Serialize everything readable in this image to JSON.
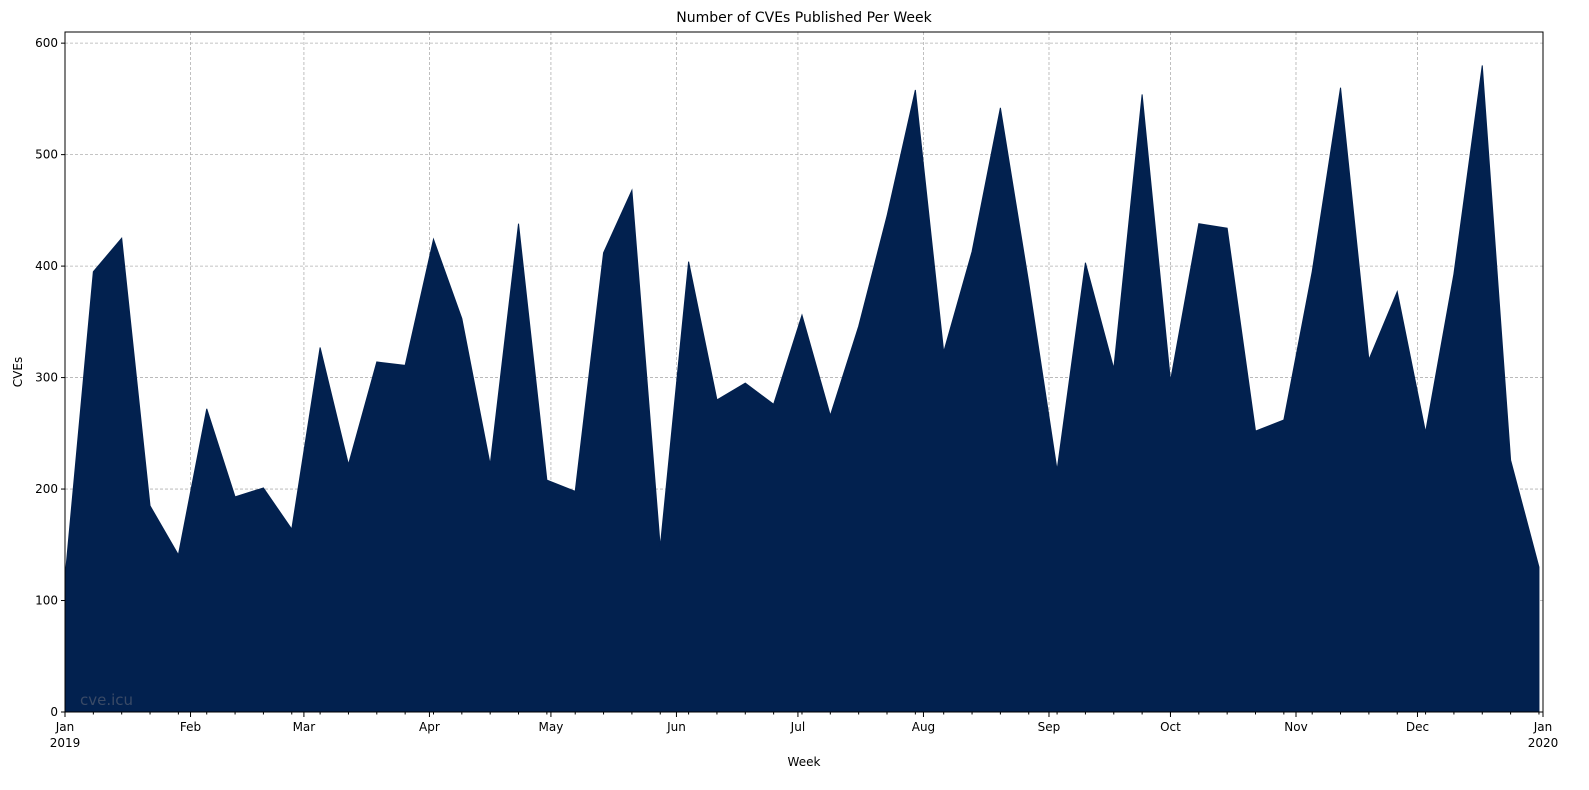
{
  "chart_data": {
    "type": "area",
    "title": "Number of CVEs Published Per Week",
    "xlabel": "Week",
    "ylabel": "CVEs",
    "ylim": [
      0,
      610
    ],
    "xlim": [
      "2019-01-01",
      "2020-01-01"
    ],
    "grid": true,
    "fill_color": "#02214f",
    "watermark": "cve.icu",
    "y_ticks": [
      0,
      100,
      200,
      300,
      400,
      500,
      600
    ],
    "x_ticks": [
      {
        "date": "2019-01-01",
        "label": "Jan",
        "sublabel": "2019"
      },
      {
        "date": "2019-02-01",
        "label": "Feb"
      },
      {
        "date": "2019-03-01",
        "label": "Mar"
      },
      {
        "date": "2019-04-01",
        "label": "Apr"
      },
      {
        "date": "2019-05-01",
        "label": "May"
      },
      {
        "date": "2019-06-01",
        "label": "Jun"
      },
      {
        "date": "2019-07-01",
        "label": "Jul"
      },
      {
        "date": "2019-08-01",
        "label": "Aug"
      },
      {
        "date": "2019-09-01",
        "label": "Sep"
      },
      {
        "date": "2019-10-01",
        "label": "Oct"
      },
      {
        "date": "2019-11-01",
        "label": "Nov"
      },
      {
        "date": "2019-12-01",
        "label": "Dec"
      },
      {
        "date": "2020-01-01",
        "label": "Jan",
        "sublabel": "2020"
      }
    ],
    "x": [
      "2019-01-01",
      "2019-01-08",
      "2019-01-15",
      "2019-01-22",
      "2019-01-29",
      "2019-02-05",
      "2019-02-12",
      "2019-02-19",
      "2019-02-26",
      "2019-03-05",
      "2019-03-12",
      "2019-03-19",
      "2019-03-26",
      "2019-04-02",
      "2019-04-09",
      "2019-04-16",
      "2019-04-23",
      "2019-04-30",
      "2019-05-07",
      "2019-05-14",
      "2019-05-21",
      "2019-05-28",
      "2019-06-04",
      "2019-06-11",
      "2019-06-18",
      "2019-06-25",
      "2019-07-02",
      "2019-07-09",
      "2019-07-16",
      "2019-07-23",
      "2019-07-30",
      "2019-08-06",
      "2019-08-13",
      "2019-08-20",
      "2019-08-27",
      "2019-09-03",
      "2019-09-10",
      "2019-09-17",
      "2019-09-24",
      "2019-10-01",
      "2019-10-08",
      "2019-10-15",
      "2019-10-22",
      "2019-10-29",
      "2019-11-05",
      "2019-11-12",
      "2019-11-19",
      "2019-11-26",
      "2019-12-03",
      "2019-12-10",
      "2019-12-17",
      "2019-12-24",
      "2019-12-31"
    ],
    "values": [
      120,
      395,
      425,
      185,
      141,
      272,
      193,
      201,
      164,
      327,
      222,
      314,
      311,
      424,
      353,
      222,
      438,
      208,
      198,
      412,
      468,
      148,
      404,
      280,
      295,
      276,
      356,
      266,
      346,
      445,
      558,
      323,
      413,
      542,
      385,
      217,
      403,
      308,
      554,
      297,
      438,
      434,
      252,
      262,
      395,
      560,
      316,
      377,
      251,
      393,
      580,
      226,
      130
    ]
  }
}
